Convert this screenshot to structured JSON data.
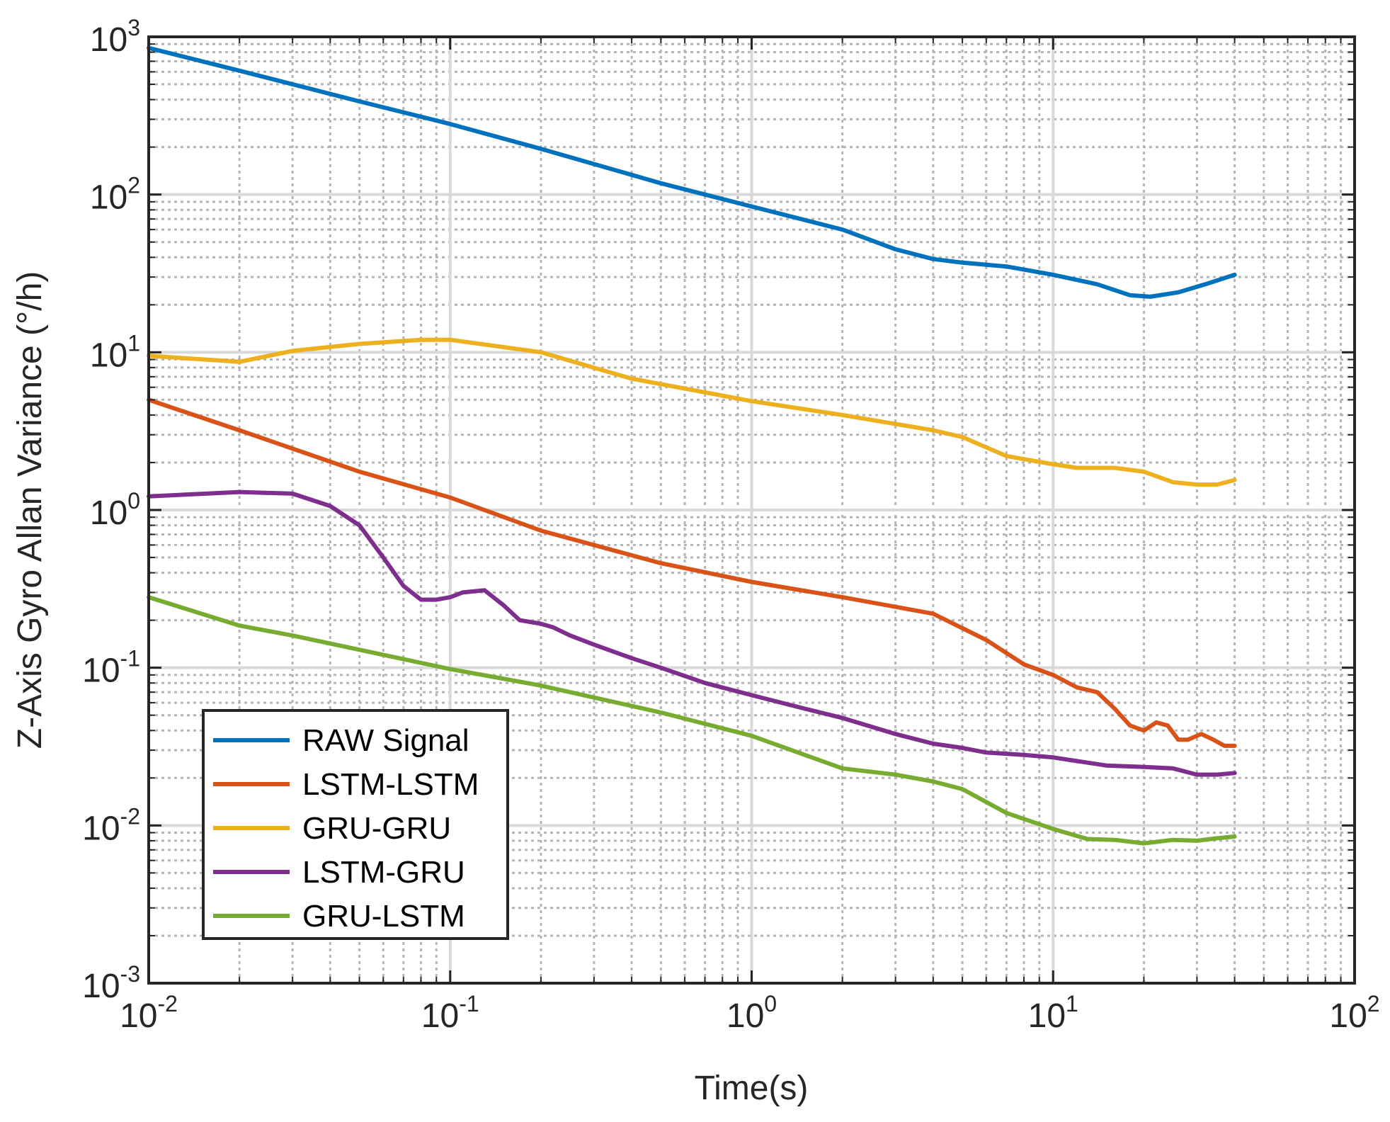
{
  "chart_data": {
    "type": "line",
    "title": "",
    "xlabel": "Time(s)",
    "ylabel": "Z-Axis Gyro Allan Variance (°/h)",
    "xscale": "log",
    "yscale": "log",
    "xlim": [
      0.01,
      100
    ],
    "ylim": [
      0.001,
      1000
    ],
    "grid": true,
    "legend_position": "bottom-left",
    "x_ticks": [
      {
        "value": 0.01,
        "base": "10",
        "exp": "-2"
      },
      {
        "value": 0.1,
        "base": "10",
        "exp": "-1"
      },
      {
        "value": 1,
        "base": "10",
        "exp": "0"
      },
      {
        "value": 10,
        "base": "10",
        "exp": "1"
      },
      {
        "value": 100,
        "base": "10",
        "exp": "2"
      }
    ],
    "y_ticks": [
      {
        "value": 0.001,
        "base": "10",
        "exp": "-3"
      },
      {
        "value": 0.01,
        "base": "10",
        "exp": "-2"
      },
      {
        "value": 0.1,
        "base": "10",
        "exp": "-1"
      },
      {
        "value": 1,
        "base": "10",
        "exp": "0"
      },
      {
        "value": 10,
        "base": "10",
        "exp": "1"
      },
      {
        "value": 100,
        "base": "10",
        "exp": "2"
      },
      {
        "value": 1000,
        "base": "10",
        "exp": "3"
      }
    ],
    "series": [
      {
        "name": "RAW Signal",
        "color": "#0072BD",
        "points": [
          [
            0.01,
            850
          ],
          [
            0.02,
            610
          ],
          [
            0.05,
            390
          ],
          [
            0.1,
            280
          ],
          [
            0.2,
            195
          ],
          [
            0.5,
            118
          ],
          [
            1,
            84
          ],
          [
            2,
            60
          ],
          [
            3,
            45
          ],
          [
            4,
            39
          ],
          [
            5,
            37
          ],
          [
            7,
            35
          ],
          [
            10,
            31
          ],
          [
            14,
            27
          ],
          [
            18,
            23
          ],
          [
            21,
            22.5
          ],
          [
            26,
            24
          ],
          [
            32,
            27
          ],
          [
            40,
            31
          ]
        ]
      },
      {
        "name": "LSTM-LSTM",
        "color": "#D95319",
        "points": [
          [
            0.01,
            5.0
          ],
          [
            0.02,
            3.2
          ],
          [
            0.05,
            1.75
          ],
          [
            0.1,
            1.2
          ],
          [
            0.2,
            0.74
          ],
          [
            0.5,
            0.46
          ],
          [
            1,
            0.35
          ],
          [
            2,
            0.28
          ],
          [
            4,
            0.22
          ],
          [
            6,
            0.15
          ],
          [
            8,
            0.105
          ],
          [
            10,
            0.09
          ],
          [
            12,
            0.075
          ],
          [
            14,
            0.07
          ],
          [
            16,
            0.055
          ],
          [
            18,
            0.043
          ],
          [
            20,
            0.04
          ],
          [
            22,
            0.045
          ],
          [
            24,
            0.043
          ],
          [
            26,
            0.035
          ],
          [
            28,
            0.035
          ],
          [
            31,
            0.038
          ],
          [
            34,
            0.035
          ],
          [
            37,
            0.032
          ],
          [
            40,
            0.032
          ]
        ]
      },
      {
        "name": "GRU-GRU",
        "color": "#EDB120",
        "points": [
          [
            0.01,
            9.5
          ],
          [
            0.02,
            8.7
          ],
          [
            0.03,
            10.2
          ],
          [
            0.05,
            11.3
          ],
          [
            0.08,
            12.0
          ],
          [
            0.1,
            12.0
          ],
          [
            0.2,
            10.0
          ],
          [
            0.4,
            6.8
          ],
          [
            1,
            4.9
          ],
          [
            2,
            4.0
          ],
          [
            4,
            3.2
          ],
          [
            5,
            2.9
          ],
          [
            7,
            2.2
          ],
          [
            10,
            1.95
          ],
          [
            12,
            1.85
          ],
          [
            16,
            1.85
          ],
          [
            20,
            1.75
          ],
          [
            25,
            1.5
          ],
          [
            30,
            1.45
          ],
          [
            35,
            1.45
          ],
          [
            40,
            1.55
          ]
        ]
      },
      {
        "name": "LSTM-GRU",
        "color": "#7E2F8E",
        "points": [
          [
            0.01,
            1.22
          ],
          [
            0.02,
            1.3
          ],
          [
            0.03,
            1.27
          ],
          [
            0.04,
            1.06
          ],
          [
            0.05,
            0.8
          ],
          [
            0.06,
            0.5
          ],
          [
            0.07,
            0.33
          ],
          [
            0.08,
            0.27
          ],
          [
            0.09,
            0.27
          ],
          [
            0.1,
            0.28
          ],
          [
            0.11,
            0.3
          ],
          [
            0.13,
            0.31
          ],
          [
            0.15,
            0.25
          ],
          [
            0.17,
            0.2
          ],
          [
            0.2,
            0.19
          ],
          [
            0.22,
            0.18
          ],
          [
            0.25,
            0.16
          ],
          [
            0.3,
            0.14
          ],
          [
            0.4,
            0.115
          ],
          [
            0.5,
            0.1
          ],
          [
            0.7,
            0.08
          ],
          [
            1,
            0.067
          ],
          [
            1.5,
            0.055
          ],
          [
            2,
            0.048
          ],
          [
            3,
            0.038
          ],
          [
            4,
            0.033
          ],
          [
            5,
            0.031
          ],
          [
            6,
            0.029
          ],
          [
            8,
            0.028
          ],
          [
            10,
            0.027
          ],
          [
            15,
            0.024
          ],
          [
            20,
            0.0235
          ],
          [
            25,
            0.023
          ],
          [
            30,
            0.021
          ],
          [
            35,
            0.021
          ],
          [
            40,
            0.0215
          ]
        ]
      },
      {
        "name": "GRU-LSTM",
        "color": "#77AC30",
        "points": [
          [
            0.01,
            0.28
          ],
          [
            0.02,
            0.185
          ],
          [
            0.03,
            0.16
          ],
          [
            0.05,
            0.13
          ],
          [
            0.1,
            0.098
          ],
          [
            0.2,
            0.077
          ],
          [
            0.5,
            0.052
          ],
          [
            1,
            0.037
          ],
          [
            2,
            0.023
          ],
          [
            3,
            0.021
          ],
          [
            4,
            0.019
          ],
          [
            5,
            0.017
          ],
          [
            7,
            0.012
          ],
          [
            10,
            0.0095
          ],
          [
            13,
            0.0082
          ],
          [
            16,
            0.0081
          ],
          [
            20,
            0.0077
          ],
          [
            25,
            0.0081
          ],
          [
            30,
            0.008
          ],
          [
            35,
            0.0083
          ],
          [
            40,
            0.0085
          ]
        ]
      }
    ]
  }
}
